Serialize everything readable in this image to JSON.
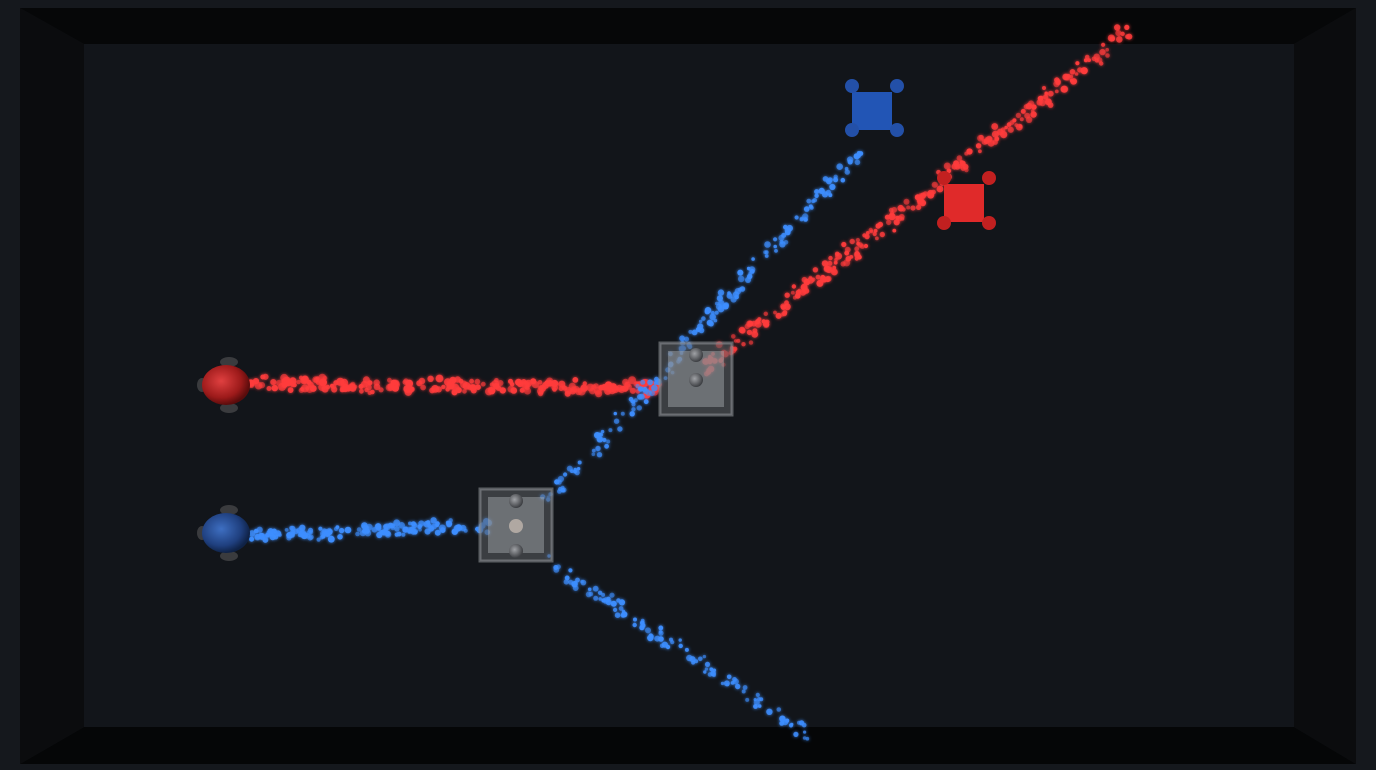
{
  "scene": {
    "colors": {
      "background": "#15181d",
      "floor": "#12151a",
      "wall_top": "#070809",
      "wall_bottom": "#050607",
      "wall_left": "#0c0d0f",
      "wall_right": "#0c0d0f",
      "red": "#ff3b3b",
      "red_dark": "#b51e1e",
      "blue": "#3d8eff",
      "blue_dark": "#1f4fa8",
      "splitter": "#8a8d93",
      "grey_ball": "#7a7c80"
    },
    "emitters": [
      {
        "name": "red-emitter",
        "color": "red",
        "shape": "sphere"
      },
      {
        "name": "blue-emitter",
        "color": "blue",
        "shape": "sphere"
      }
    ],
    "splitters": [
      {
        "name": "upper-splitter-block"
      },
      {
        "name": "lower-splitter-block"
      }
    ],
    "targets": [
      {
        "name": "blue-target-block",
        "color": "blue"
      },
      {
        "name": "red-target-block",
        "color": "red"
      }
    ],
    "beams": [
      {
        "name": "red-beam-horizontal",
        "color": "red"
      },
      {
        "name": "red-beam-diagonal",
        "color": "red"
      },
      {
        "name": "blue-beam-horizontal",
        "color": "blue"
      },
      {
        "name": "blue-beam-upper-diagonal",
        "color": "blue"
      },
      {
        "name": "blue-beam-lower-diagonal",
        "color": "blue"
      }
    ]
  }
}
